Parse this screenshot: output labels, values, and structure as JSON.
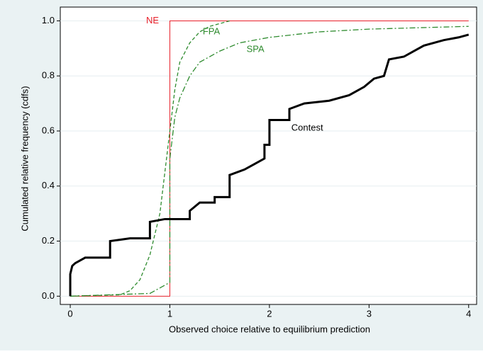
{
  "chart_data": {
    "type": "line",
    "xlabel": "Observed choice relative to equilibrium prediction",
    "ylabel": "Cumulated relative frequency (cdfs)",
    "xlim": [
      -0.1,
      4.08
    ],
    "ylim": [
      -0.03,
      1.05
    ],
    "xticks": [
      0,
      1,
      2,
      3,
      4
    ],
    "yticks": [
      {
        "value": 0,
        "label": "0.0"
      },
      {
        "value": 0.2,
        "label": "0.2"
      },
      {
        "value": 0.4,
        "label": "0.4"
      },
      {
        "value": 0.6,
        "label": "0.6"
      },
      {
        "value": 0.8,
        "label": "0.8"
      },
      {
        "value": 1,
        "label": "1.0"
      }
    ],
    "grid": true,
    "series": [
      {
        "name": "NE",
        "color": "#e8202a",
        "style": "solid",
        "width": 1,
        "x": [
          0,
          1,
          1,
          4
        ],
        "values": [
          0,
          0,
          1,
          1
        ]
      },
      {
        "name": "FPA",
        "color": "#2e8b2e",
        "style": "dash",
        "width": 1.3,
        "x": [
          0,
          0.5,
          0.6,
          0.7,
          0.8,
          0.9,
          0.95,
          1.0,
          1.05,
          1.1,
          1.2,
          1.3,
          1.4,
          1.5,
          1.6
        ],
        "values": [
          0,
          0.005,
          0.02,
          0.06,
          0.15,
          0.3,
          0.45,
          0.6,
          0.75,
          0.85,
          0.92,
          0.96,
          0.98,
          0.99,
          1.0
        ]
      },
      {
        "name": "SPA",
        "color": "#2e8b2e",
        "style": "dashdot",
        "width": 1.3,
        "x": [
          0,
          0.8,
          0.9,
          1.0,
          1.0,
          1.05,
          1.1,
          1.2,
          1.3,
          1.5,
          1.7,
          2.0,
          2.5,
          3.0,
          3.5,
          4.0
        ],
        "values": [
          0,
          0.01,
          0.03,
          0.05,
          0.5,
          0.65,
          0.72,
          0.8,
          0.85,
          0.89,
          0.92,
          0.94,
          0.96,
          0.97,
          0.975,
          0.98
        ]
      },
      {
        "name": "Contest",
        "color": "#000000",
        "style": "solid",
        "width": 3,
        "x": [
          0,
          0,
          0.02,
          0.05,
          0.1,
          0.15,
          0.35,
          0.4,
          0.4,
          0.6,
          0.8,
          0.8,
          0.95,
          1.2,
          1.2,
          1.3,
          1.45,
          1.45,
          1.6,
          1.6,
          1.75,
          1.85,
          1.95,
          1.95,
          2.0,
          2.0,
          2.2,
          2.2,
          2.35,
          2.6,
          2.8,
          2.95,
          3.05,
          3.15,
          3.2,
          3.35,
          3.45,
          3.55,
          3.75,
          3.9,
          4.0
        ],
        "values": [
          0,
          0.08,
          0.11,
          0.12,
          0.13,
          0.14,
          0.14,
          0.14,
          0.2,
          0.21,
          0.21,
          0.27,
          0.28,
          0.28,
          0.31,
          0.34,
          0.34,
          0.36,
          0.36,
          0.44,
          0.46,
          0.48,
          0.5,
          0.55,
          0.55,
          0.64,
          0.64,
          0.68,
          0.7,
          0.71,
          0.73,
          0.76,
          0.79,
          0.8,
          0.86,
          0.87,
          0.89,
          0.91,
          0.93,
          0.94,
          0.95
        ]
      }
    ]
  }
}
